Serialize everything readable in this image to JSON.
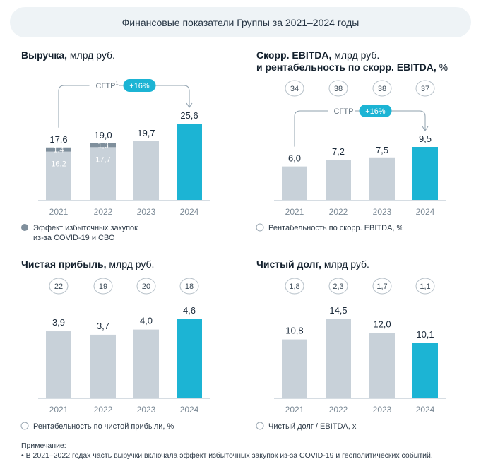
{
  "header": {
    "title": "Финансовые показатели Группы за 2021–2024 годы"
  },
  "colors": {
    "bar": "#c8d1d9",
    "bar_highlight": "#1cb4d4",
    "overlay": "#7f8f9c",
    "pill": "#1cb4d4",
    "text": "#1b2a3a",
    "axis": "#d6dde3",
    "tick": "#7c8a96",
    "oval_border": "#b7c1c9"
  },
  "chart_data": [
    {
      "id": "revenue",
      "type": "bar",
      "title_bold": "Выручка,",
      "title_rest": " млрд руб.",
      "categories": [
        "2021",
        "2022",
        "2023",
        "2024"
      ],
      "values": [
        17.6,
        19.0,
        19.7,
        25.6
      ],
      "value_labels": [
        "17,6",
        "19,0",
        "19,7",
        "25,6"
      ],
      "stack": {
        "base_values": [
          16.2,
          17.7,
          null,
          null
        ],
        "base_labels": [
          "16,2",
          "17,7",
          null,
          null
        ],
        "effect_values": [
          1.4,
          1.3,
          null,
          null
        ],
        "effect_labels": [
          "1,4",
          "1,3",
          null,
          null
        ]
      },
      "cagr": {
        "label": "СГТР",
        "superscript": "1",
        "value": "+16%"
      },
      "legend": {
        "marker": "filled",
        "text": "Эффект избыточных закупок из-за COVID-19 и СВО"
      },
      "ylim": [
        0,
        25.6
      ]
    },
    {
      "id": "ebitda",
      "type": "bar",
      "title_bold": "Скорр. EBITDA,",
      "title_rest": " млрд руб.",
      "title_line2_bold": "и рентабельность по скорр. EBITDA,",
      "title_line2_rest": " %",
      "categories": [
        "2021",
        "2022",
        "2023",
        "2024"
      ],
      "values": [
        6.0,
        7.2,
        7.5,
        9.5
      ],
      "value_labels": [
        "6,0",
        "7,2",
        "7,5",
        "9,5"
      ],
      "ovals": [
        "34",
        "38",
        "38",
        "37"
      ],
      "cagr": {
        "label": "СГТР",
        "superscript": "",
        "value": "+16%"
      },
      "legend": {
        "marker": "open",
        "text": "Рентабельность по скорр. EBITDA, %"
      },
      "ylim": [
        0,
        9.5
      ]
    },
    {
      "id": "net_profit",
      "type": "bar",
      "title_bold": "Чистая прибыль,",
      "title_rest": " млрд руб.",
      "categories": [
        "2021",
        "2022",
        "2023",
        "2024"
      ],
      "values": [
        3.9,
        3.7,
        4.0,
        4.6
      ],
      "value_labels": [
        "3,9",
        "3,7",
        "4,0",
        "4,6"
      ],
      "ovals": [
        "22",
        "19",
        "20",
        "18"
      ],
      "legend": {
        "marker": "open",
        "text": "Рентабельность по чистой прибыли, %"
      },
      "ylim": [
        0,
        4.6
      ]
    },
    {
      "id": "net_debt",
      "type": "bar",
      "title_bold": "Чистый долг,",
      "title_rest": " млрд руб.",
      "categories": [
        "2021",
        "2022",
        "2023",
        "2024"
      ],
      "values": [
        10.8,
        14.5,
        12.0,
        10.1
      ],
      "value_labels": [
        "10,8",
        "14,5",
        "12,0",
        "10,1"
      ],
      "ovals": [
        "1,8",
        "2,3",
        "1,7",
        "1,1"
      ],
      "legend": {
        "marker": "open",
        "text": "Чистый долг / EBITDA, x"
      },
      "ylim": [
        0,
        14.5
      ]
    }
  ],
  "note": {
    "heading": "Примечание:",
    "text": "В 2021–2022 годах часть выручки включала эффект избыточных закупок из-за COVID-19 и геополитических событий."
  }
}
